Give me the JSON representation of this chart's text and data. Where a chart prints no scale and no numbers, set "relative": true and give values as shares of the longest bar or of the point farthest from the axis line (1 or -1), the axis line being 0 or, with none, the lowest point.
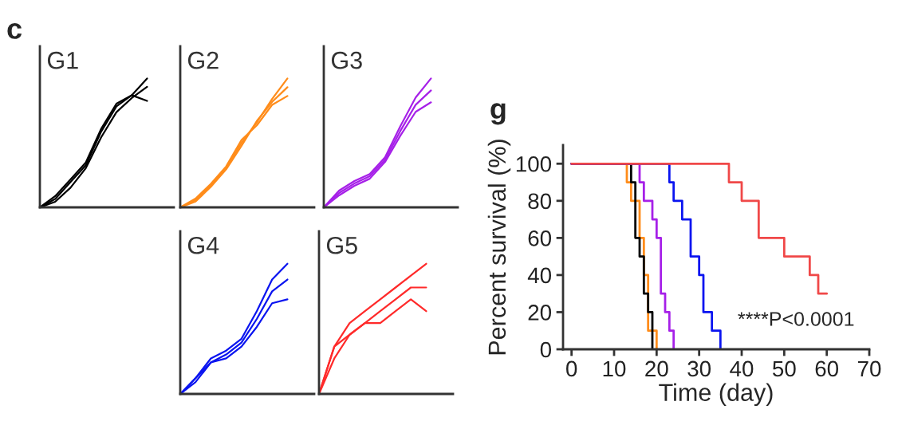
{
  "chart_data": [
    {
      "type": "line",
      "title": "G1",
      "annotations": [
        "c"
      ],
      "relative": true,
      "categories": [
        null,
        null,
        null,
        null,
        null,
        null,
        null,
        null
      ],
      "series": [
        {
          "color": "#000000",
          "values": [
            0,
            0.065,
            0.196,
            0.326,
            0.587,
            0.783,
            0.87,
            1
          ]
        },
        {
          "color": "#000000",
          "values": [
            0,
            0.043,
            0.152,
            0.304,
            0.543,
            0.739,
            0.848,
            0.935
          ]
        },
        {
          "color": "#000000",
          "values": [
            0,
            0.087,
            0.217,
            0.348,
            0.609,
            0.804,
            0.87,
            0.826
          ]
        }
      ]
    },
    {
      "type": "line",
      "title": "G2",
      "relative": true,
      "categories": [
        null,
        null,
        null,
        null,
        null,
        null,
        null,
        null
      ],
      "series": [
        {
          "color": "#ff8c1a",
          "values": [
            0,
            0.057,
            0.17,
            0.307,
            0.5,
            0.659,
            0.841,
            1
          ]
        },
        {
          "color": "#ff8c1a",
          "values": [
            0,
            0.045,
            0.159,
            0.295,
            0.477,
            0.67,
            0.818,
            0.932
          ]
        },
        {
          "color": "#ff8c1a",
          "values": [
            0,
            0.068,
            0.182,
            0.318,
            0.523,
            0.636,
            0.795,
            0.864
          ]
        }
      ]
    },
    {
      "type": "line",
      "title": "G3",
      "relative": true,
      "categories": [
        null,
        null,
        null,
        null,
        null,
        null,
        null,
        null
      ],
      "series": [
        {
          "color": "#a620e8",
          "values": [
            0,
            0.13,
            0.204,
            0.259,
            0.389,
            0.63,
            0.852,
            1
          ]
        },
        {
          "color": "#a620e8",
          "values": [
            0,
            0.111,
            0.185,
            0.241,
            0.37,
            0.593,
            0.796,
            0.907
          ]
        },
        {
          "color": "#a620e8",
          "values": [
            0,
            0.093,
            0.167,
            0.222,
            0.352,
            0.556,
            0.741,
            0.815
          ]
        }
      ]
    },
    {
      "type": "line",
      "title": "G4",
      "relative": true,
      "categories": [
        null,
        null,
        null,
        null,
        null,
        null,
        null,
        null
      ],
      "series": [
        {
          "color": "#0a14f0",
          "values": [
            0,
            0.121,
            0.273,
            0.333,
            0.424,
            0.636,
            0.879,
            1
          ]
        },
        {
          "color": "#0a14f0",
          "values": [
            0,
            0.091,
            0.242,
            0.303,
            0.394,
            0.576,
            0.788,
            0.879
          ]
        },
        {
          "color": "#0a14f0",
          "values": [
            0,
            0.121,
            0.242,
            0.273,
            0.364,
            0.515,
            0.697,
            0.727
          ]
        }
      ]
    },
    {
      "type": "line",
      "title": "G5",
      "relative": true,
      "categories": [
        null,
        null,
        null,
        null,
        null,
        null,
        null,
        null
      ],
      "series": [
        {
          "color": "#ff2a2a",
          "values": [
            0,
            0.364,
            0.545,
            0.636,
            0.727,
            0.818,
            0.909,
            1
          ]
        },
        {
          "color": "#ff2a2a",
          "values": [
            0,
            0.273,
            0.455,
            0.545,
            0.636,
            0.727,
            0.818,
            0.818
          ]
        },
        {
          "color": "#ff2a2a",
          "values": [
            0,
            0.364,
            0.455,
            0.545,
            0.545,
            0.636,
            0.727,
            0.636
          ]
        }
      ]
    },
    {
      "type": "step",
      "title": "g",
      "xlabel": "Time (day)",
      "ylabel": "Percent survival (%)",
      "annotations": [
        "****P<0.0001"
      ],
      "xlim": [
        -2,
        70
      ],
      "ylim": [
        0,
        110
      ],
      "xticks": [
        0,
        10,
        20,
        30,
        40,
        50,
        60,
        70
      ],
      "yticks": [
        0,
        20,
        40,
        60,
        80,
        100
      ],
      "series": [
        {
          "color": "#ff8c1a",
          "x": [
            0,
            13,
            14,
            16,
            17,
            18,
            20
          ],
          "values": [
            100,
            90,
            80,
            60,
            40,
            10,
            0
          ]
        },
        {
          "color": "#000000",
          "x": [
            0,
            14,
            15,
            16,
            17,
            18,
            19
          ],
          "values": [
            100,
            90,
            60,
            50,
            30,
            20,
            0
          ]
        },
        {
          "color": "#a620e8",
          "x": [
            0,
            16,
            17,
            19,
            20,
            21,
            22,
            23,
            24
          ],
          "values": [
            100,
            90,
            80,
            70,
            60,
            30,
            20,
            10,
            0
          ]
        },
        {
          "color": "#0a14f0",
          "x": [
            0,
            23,
            24,
            26,
            28,
            30,
            31,
            33,
            35
          ],
          "values": [
            100,
            90,
            80,
            70,
            50,
            40,
            20,
            10,
            0
          ]
        },
        {
          "color": "#f04848",
          "x": [
            0,
            37,
            40,
            44,
            50,
            56,
            58,
            60
          ],
          "values": [
            100,
            90,
            80,
            60,
            50,
            40,
            30,
            30
          ]
        }
      ]
    }
  ]
}
